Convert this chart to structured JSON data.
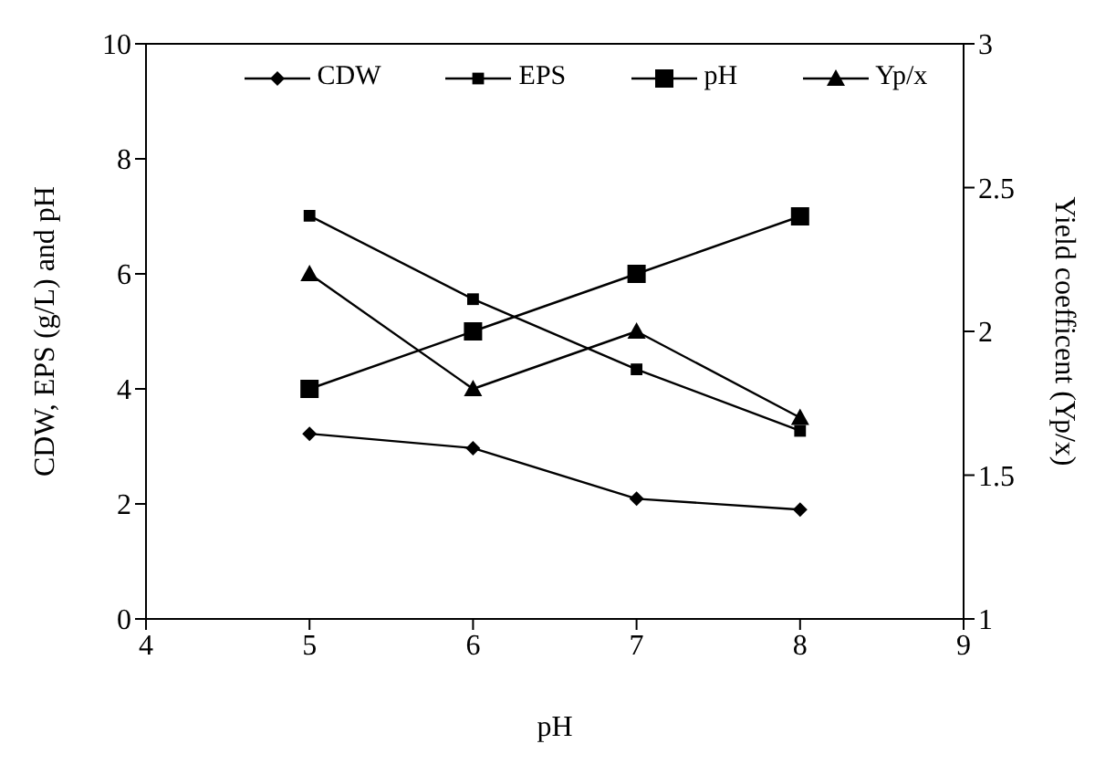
{
  "chart_data": {
    "type": "line",
    "xlabel": "pH",
    "ylabel": "CDW, EPS (g/L) and pH",
    "y2label": "Yield coefficent (Yp/x)",
    "x": [
      5,
      6,
      7,
      8
    ],
    "xlim": [
      4,
      9
    ],
    "xticks": [
      4,
      5,
      6,
      7,
      8,
      9
    ],
    "ylim": [
      0,
      10
    ],
    "yticks": [
      0,
      2,
      4,
      6,
      8,
      10
    ],
    "y2lim": [
      1,
      3
    ],
    "y2ticks": [
      1,
      1.5,
      2,
      2.5,
      3
    ],
    "legend": "top",
    "line_style": "solid",
    "series": [
      {
        "name": "CDW",
        "color": "#000000",
        "marker": "diamond",
        "values": [
          3.22,
          2.97,
          2.09,
          1.9
        ]
      },
      {
        "name": "EPS",
        "color": "#000000",
        "marker": "square",
        "values": [
          7.01,
          5.56,
          4.34,
          3.27
        ]
      },
      {
        "name": "pH",
        "color": "#000000",
        "marker": "square",
        "values": [
          4,
          5,
          6,
          7
        ]
      },
      {
        "name": "Yp/x",
        "color": "#000000",
        "marker": "triangle",
        "axis": "y2",
        "values": [
          2.2,
          1.8,
          2.0,
          1.7
        ]
      }
    ]
  }
}
